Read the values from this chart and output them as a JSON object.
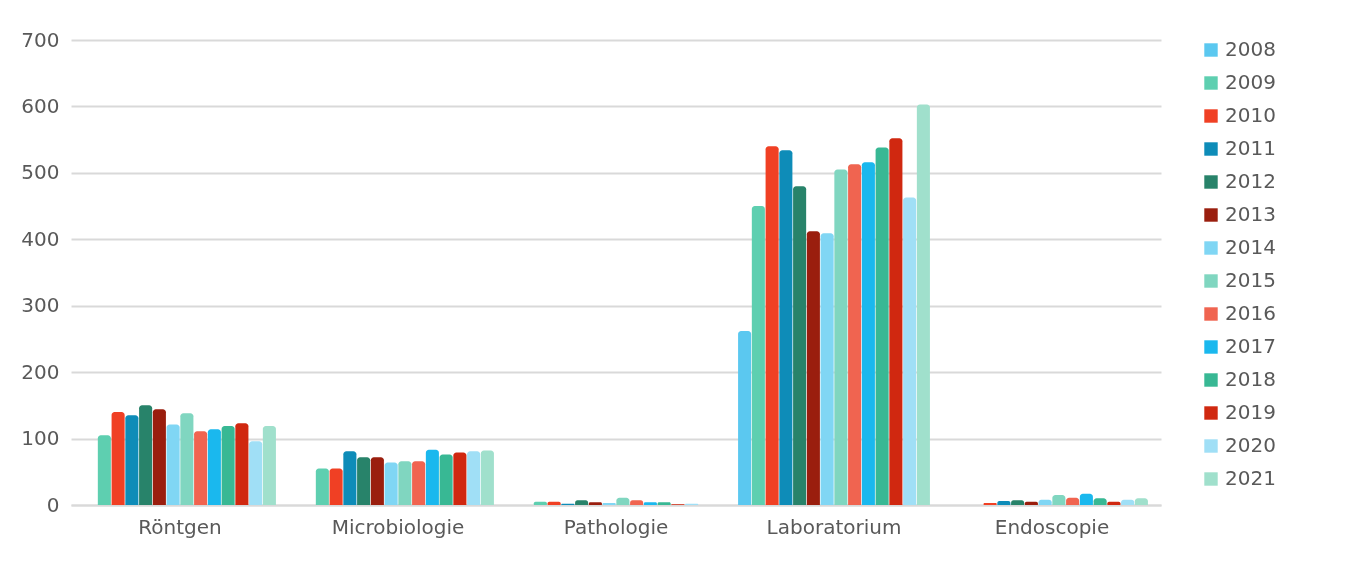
{
  "chart_data": {
    "type": "bar",
    "categories": [
      "Röntgen",
      "Microbiologie",
      "Pathologie",
      "Laboratorium",
      "Endoscopie"
    ],
    "ylim": [
      0,
      700
    ],
    "yticks": [
      0,
      100,
      200,
      300,
      400,
      500,
      600,
      700
    ],
    "grid": "y",
    "legend": "right",
    "series": [
      {
        "name": "2008",
        "color": "#5bc8f0",
        "values": [
          0,
          0,
          0,
          262,
          0
        ]
      },
      {
        "name": "2009",
        "color": "#5ecfb0",
        "values": [
          105,
          55,
          5,
          450,
          0
        ]
      },
      {
        "name": "2010",
        "color": "#f04024",
        "values": [
          140,
          55,
          5,
          540,
          3
        ]
      },
      {
        "name": "2011",
        "color": "#0e8cb8",
        "values": [
          135,
          81,
          2,
          534,
          6
        ]
      },
      {
        "name": "2012",
        "color": "#28836a",
        "values": [
          150,
          72,
          7,
          480,
          7
        ]
      },
      {
        "name": "2013",
        "color": "#9a1e0e",
        "values": [
          144,
          72,
          4,
          412,
          5
        ]
      },
      {
        "name": "2014",
        "color": "#80d6f4",
        "values": [
          121,
          64,
          3,
          409,
          8
        ]
      },
      {
        "name": "2015",
        "color": "#80d6c0",
        "values": [
          138,
          66,
          11,
          505,
          15
        ]
      },
      {
        "name": "2016",
        "color": "#f06450",
        "values": [
          111,
          66,
          7,
          513,
          11
        ]
      },
      {
        "name": "2017",
        "color": "#1ab8ee",
        "values": [
          114,
          83,
          4,
          516,
          17
        ]
      },
      {
        "name": "2018",
        "color": "#38b894",
        "values": [
          119,
          76,
          4,
          538,
          10
        ]
      },
      {
        "name": "2019",
        "color": "#d02810",
        "values": [
          123,
          79,
          1,
          552,
          5
        ]
      },
      {
        "name": "2020",
        "color": "#a0dff6",
        "values": [
          96,
          81,
          2,
          463,
          8
        ]
      },
      {
        "name": "2021",
        "color": "#a0e0cc",
        "values": [
          119,
          82,
          0,
          603,
          10
        ]
      }
    ]
  }
}
